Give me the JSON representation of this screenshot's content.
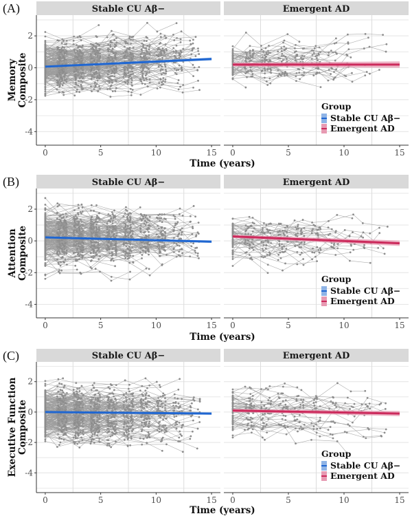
{
  "figure": {
    "panels": [
      {
        "tag": "(A)",
        "ylabel_lines": [
          "Memory",
          "Composite"
        ]
      },
      {
        "tag": "(B)",
        "ylabel_lines": [
          "Attention",
          "Composite"
        ]
      },
      {
        "tag": "(C)",
        "ylabel_lines": [
          "Executive Function",
          "Composite"
        ]
      }
    ],
    "facets": [
      "Stable CU Aβ−",
      "Emergent AD"
    ],
    "xlabel": "Time (years)",
    "legend": {
      "title": "Group",
      "entries": [
        {
          "label": "Stable CU Aβ−",
          "color": "#1f66d1",
          "ribbon": "#8fb4e6"
        },
        {
          "label": "Emergent AD",
          "color": "#cc2a5c",
          "ribbon": "#e79ab2"
        }
      ]
    }
  },
  "chart_data": [
    {
      "type": "line",
      "title": "(A)",
      "xlabel": "Time (years)",
      "ylabel": "Memory Composite",
      "xlim": [
        -0.8,
        15.8
      ],
      "ylim": [
        -4.85,
        3.3
      ],
      "xticks": [
        0,
        5,
        10,
        15
      ],
      "yticks": [
        -4,
        -2,
        0,
        2
      ],
      "grid": true,
      "legend_position": "bottom-right",
      "facets": [
        {
          "name": "Stable CU Aβ−",
          "fit": {
            "x": [
              0,
              15
            ],
            "y": [
              0.07,
              0.55
            ],
            "ci_halfwidth": 0.09,
            "color": "#1f66d1"
          },
          "trajectories": {
            "n_subjects": 230,
            "visit_times": [
              0,
              1.5,
              3,
              4.5,
              6,
              7.5,
              9,
              10.5,
              12,
              13.5
            ],
            "mean_at_0": 0.05,
            "sd": 0.6,
            "slope": 0.032,
            "max_followup": 14.5
          }
        },
        {
          "name": "Emergent AD",
          "fit": {
            "x": [
              0,
              15
            ],
            "y": [
              0.2,
              0.2
            ],
            "ci_halfwidth": 0.2,
            "color": "#cc2a5c"
          },
          "trajectories": {
            "n_subjects": 55,
            "visit_times": [
              0,
              1.5,
              3,
              4.5,
              6,
              7.5,
              9,
              10.5,
              12,
              13.5
            ],
            "mean_at_0": 0.2,
            "sd": 0.55,
            "slope": 0.0,
            "max_followup": 14.2
          }
        }
      ]
    },
    {
      "type": "line",
      "title": "(B)",
      "xlabel": "Time (years)",
      "ylabel": "Attention Composite",
      "xlim": [
        -0.8,
        15.8
      ],
      "ylim": [
        -4.85,
        3.3
      ],
      "xticks": [
        0,
        5,
        10,
        15
      ],
      "yticks": [
        -4,
        -2,
        0,
        2
      ],
      "grid": true,
      "legend_position": "bottom-right",
      "facets": [
        {
          "name": "Stable CU Aβ−",
          "fit": {
            "x": [
              0,
              15
            ],
            "y": [
              0.22,
              -0.05
            ],
            "ci_halfwidth": 0.08,
            "color": "#1f66d1"
          },
          "trajectories": {
            "n_subjects": 230,
            "visit_times": [
              0,
              1.5,
              3,
              4.5,
              6,
              7.5,
              9,
              10.5,
              12,
              13.5
            ],
            "mean_at_0": 0.2,
            "sd": 0.75,
            "slope": -0.018,
            "max_followup": 14.3
          }
        },
        {
          "name": "Emergent AD",
          "fit": {
            "x": [
              0,
              15
            ],
            "y": [
              0.28,
              -0.15
            ],
            "ci_halfwidth": 0.17,
            "color": "#cc2a5c"
          },
          "trajectories": {
            "n_subjects": 55,
            "visit_times": [
              0,
              1.5,
              3,
              4.5,
              6,
              7.5,
              9,
              10.5,
              12,
              13.5
            ],
            "mean_at_0": 0.25,
            "sd": 0.6,
            "slope": -0.03,
            "max_followup": 14.2
          }
        }
      ]
    },
    {
      "type": "line",
      "title": "(C)",
      "xlabel": "Time (years)",
      "ylabel": "Executive Function Composite",
      "xlim": [
        -0.8,
        15.8
      ],
      "ylim": [
        -5.3,
        3.3
      ],
      "xticks": [
        0,
        5,
        10,
        15
      ],
      "yticks": [
        -4,
        -2,
        0,
        2
      ],
      "grid": true,
      "legend_position": "bottom-right",
      "facets": [
        {
          "name": "Stable CU Aβ−",
          "fit": {
            "x": [
              0,
              15
            ],
            "y": [
              0.0,
              -0.1
            ],
            "ci_halfwidth": 0.08,
            "color": "#1f66d1"
          },
          "trajectories": {
            "n_subjects": 230,
            "visit_times": [
              0,
              1.5,
              3,
              4.5,
              6,
              7.5,
              9,
              10.5,
              12,
              13.5
            ],
            "mean_at_0": 0.0,
            "sd": 0.8,
            "slope": -0.007,
            "max_followup": 14.5
          }
        },
        {
          "name": "Emergent AD",
          "fit": {
            "x": [
              0,
              15
            ],
            "y": [
              0.1,
              -0.1
            ],
            "ci_halfwidth": 0.17,
            "color": "#cc2a5c"
          },
          "trajectories": {
            "n_subjects": 55,
            "visit_times": [
              0,
              1.5,
              3,
              4.5,
              6,
              7.5,
              9,
              10.5,
              12,
              13.5
            ],
            "mean_at_0": 0.1,
            "sd": 0.65,
            "slope": -0.013,
            "max_followup": 14.2
          }
        }
      ]
    }
  ]
}
